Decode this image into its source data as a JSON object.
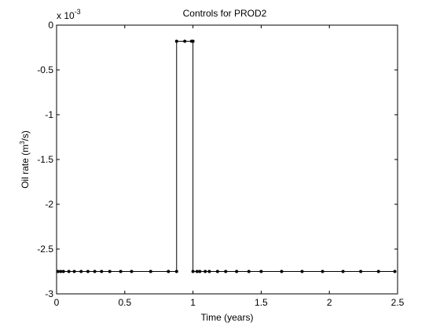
{
  "chart_data": {
    "type": "line",
    "title": "Controls for PROD2",
    "xlabel": "Time (years)",
    "ylabel_parts": [
      "Oil rate (m",
      "3",
      "/s)"
    ],
    "y_multiplier": {
      "base": "x 10",
      "exponent": "-3"
    },
    "xlim": [
      0,
      2.5
    ],
    "xticks": [
      0,
      0.5,
      1,
      1.5,
      2,
      2.5
    ],
    "ylim": [
      -3,
      0
    ],
    "yticks": [
      0,
      -0.5,
      -1,
      -1.5,
      -2,
      -2.5,
      -3
    ],
    "series": [
      {
        "color": "#000000",
        "x": [
          0.01,
          0.03,
          0.05,
          0.09,
          0.13,
          0.18,
          0.23,
          0.28,
          0.33,
          0.39,
          0.47,
          0.55,
          0.69,
          0.82,
          0.88,
          0.88,
          0.94,
          0.99,
          1.0,
          1.0,
          1.03,
          1.05,
          1.09,
          1.12,
          1.18,
          1.24,
          1.32,
          1.41,
          1.5,
          1.65,
          1.8,
          1.95,
          2.1,
          2.23,
          2.36,
          2.48
        ],
        "values": [
          -2.75,
          -2.75,
          -2.75,
          -2.75,
          -2.75,
          -2.75,
          -2.75,
          -2.75,
          -2.75,
          -2.75,
          -2.75,
          -2.75,
          -2.75,
          -2.75,
          -2.75,
          -0.18,
          -0.18,
          -0.18,
          -0.18,
          -2.75,
          -2.75,
          -2.75,
          -2.75,
          -2.75,
          -2.75,
          -2.75,
          -2.75,
          -2.75,
          -2.75,
          -2.75,
          -2.75,
          -2.75,
          -2.75,
          -2.75,
          -2.75,
          -2.75
        ]
      }
    ]
  }
}
